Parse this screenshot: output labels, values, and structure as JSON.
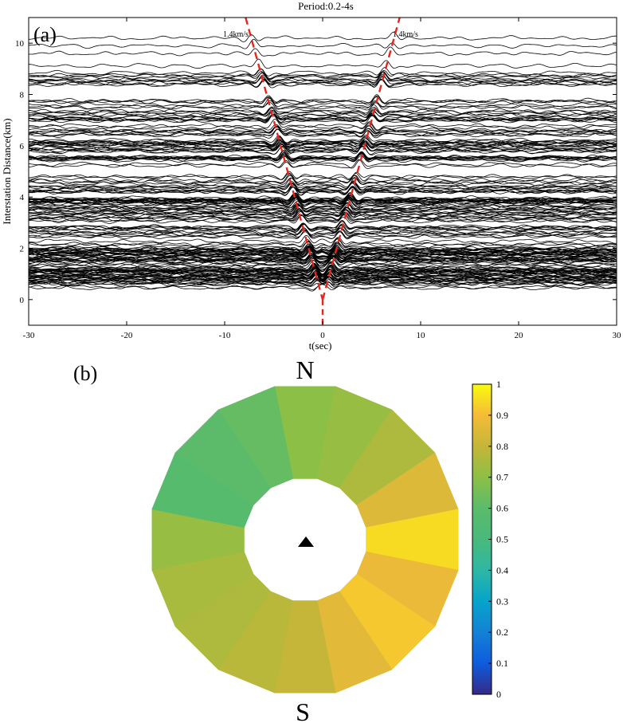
{
  "panel_a": {
    "panel_label": "(a)",
    "title": "Period:0.2-4s",
    "xlabel": "t(sec)",
    "ylabel": "Interstation Distance(km)",
    "velocity_label_left": "1.4km/s",
    "velocity_label_right": "1.4km/s",
    "line_color": "#000000",
    "moveout_color": "#e4261c"
  },
  "panel_b": {
    "panel_label": "(b)",
    "north_label": "N",
    "south_label": "S",
    "station_marker": "triangle-icon",
    "colorbar_ticks": [
      "0",
      "0.1",
      "0.2",
      "0.3",
      "0.4",
      "0.5",
      "0.6",
      "0.7",
      "0.8",
      "0.9",
      "1"
    ]
  },
  "chart_data": [
    {
      "type": "line",
      "subtype": "noise cross-correlation record section",
      "title": "Period:0.2-4s",
      "xlabel": "t(sec)",
      "ylabel": "Interstation Distance(km)",
      "xlim": [
        -30,
        30
      ],
      "ylim": [
        -1,
        11
      ],
      "xticks": [
        -30,
        -20,
        -10,
        0,
        10,
        20,
        30
      ],
      "yticks": [
        0,
        2,
        4,
        6,
        8,
        10
      ],
      "moveout_velocity_km_s": 1.4,
      "moveout_lines": [
        {
          "label": "1.4km/s",
          "x": [
            -7.86,
            0
          ],
          "y": [
            11,
            0
          ]
        },
        {
          "label": "1.4km/s",
          "x": [
            0,
            7.86
          ],
          "y": [
            0,
            11
          ]
        }
      ],
      "grid": false
    },
    {
      "type": "polar_heatmap",
      "description": "azimuthal distribution of normalized values, 16 sectors, clockwise from N",
      "sector_centers_deg": [
        0,
        22.5,
        45,
        67.5,
        90,
        112.5,
        135,
        157.5,
        180,
        202.5,
        225,
        247.5,
        270,
        292.5,
        315,
        337.5
      ],
      "values": [
        0.7,
        0.72,
        0.76,
        0.85,
        0.95,
        0.88,
        0.92,
        0.86,
        0.8,
        0.78,
        0.76,
        0.75,
        0.72,
        0.58,
        0.6,
        0.62
      ],
      "colorbar": {
        "min": 0,
        "max": 1,
        "ticks": [
          0,
          0.1,
          0.2,
          0.3,
          0.4,
          0.5,
          0.6,
          0.7,
          0.8,
          0.9,
          1
        ],
        "colormap": "parula"
      }
    }
  ]
}
